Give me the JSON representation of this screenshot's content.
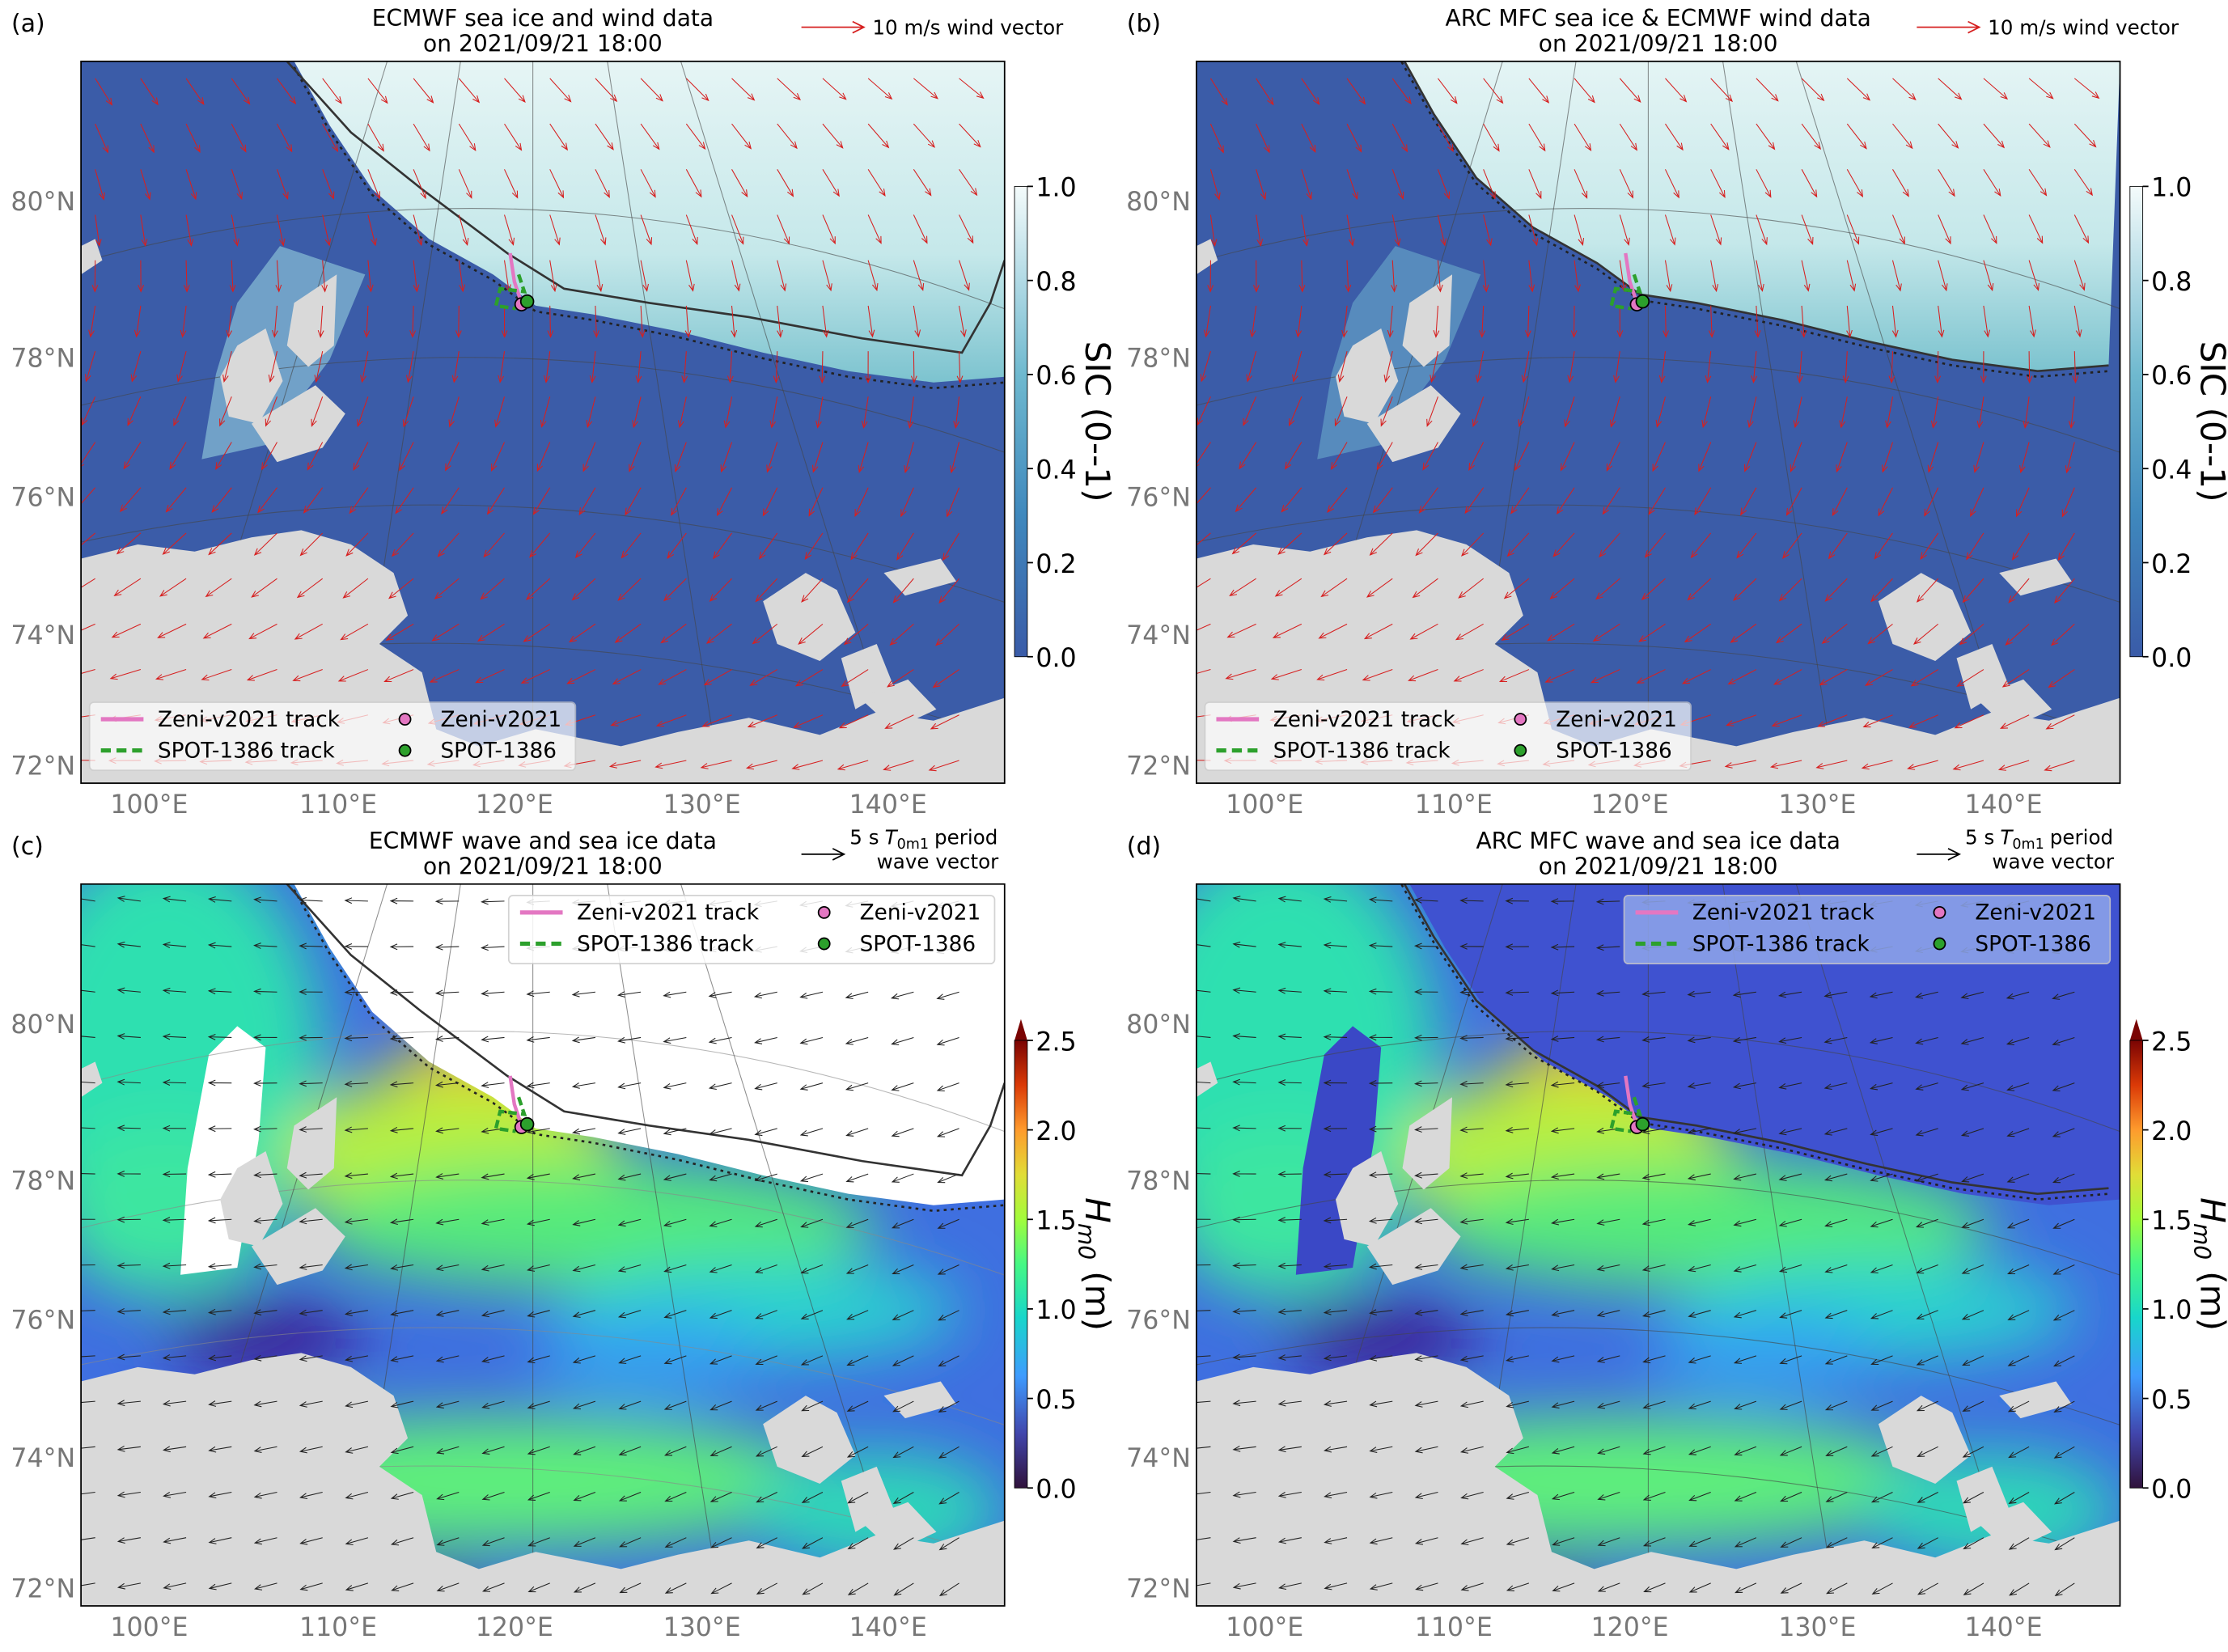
{
  "panels": [
    {
      "label": "(a)",
      "title": [
        "ECMWF sea ice and wind data",
        "on 2021/09/21 18:00"
      ],
      "key": {
        "text": "10 m/s wind vector"
      },
      "colorbar": {
        "label": "SIC (0--1)",
        "ticks": [
          "0.0",
          "0.2",
          "0.4",
          "0.6",
          "0.8",
          "1.0"
        ]
      }
    },
    {
      "label": "(b)",
      "title": [
        "ARC MFC sea ice & ECMWF wind data",
        "on 2021/09/21 18:00"
      ],
      "key": {
        "text": "10 m/s wind vector"
      },
      "colorbar": {
        "label": "SIC (0--1)",
        "ticks": [
          "0.0",
          "0.2",
          "0.4",
          "0.6",
          "0.8",
          "1.0"
        ]
      }
    },
    {
      "label": "(c)",
      "title": [
        "ECMWF wave and sea ice data",
        "on 2021/09/21 18:00"
      ],
      "key": {
        "text": "5 s",
        "symbol": "T",
        "subscript": "0m1",
        "suffix": "period",
        "line2": "wave vector"
      },
      "colorbar": {
        "symbol": "H",
        "subscript": "m0",
        "unit": "(m)",
        "ticks": [
          "0.0",
          "0.5",
          "1.0",
          "1.5",
          "2.0",
          "2.5"
        ]
      }
    },
    {
      "label": "(d)",
      "title": [
        "ARC MFC wave and sea ice data",
        "on 2021/09/21 18:00"
      ],
      "key": {
        "text": "5 s",
        "symbol": "T",
        "subscript": "0m1",
        "suffix": "period",
        "line2": "wave vector"
      },
      "colorbar": {
        "symbol": "H",
        "subscript": "m0",
        "unit": "(m)",
        "ticks": [
          "0.0",
          "0.5",
          "1.0",
          "1.5",
          "2.0",
          "2.5"
        ]
      }
    }
  ],
  "legend": [
    "Zeni-v2021 track",
    "SPOT-1386 track",
    "Zeni-v2021",
    "SPOT-1386"
  ],
  "lat_labels": [
    "80°N",
    "78°N",
    "76°N",
    "74°N",
    "72°N"
  ],
  "lon_labels": [
    "100°E",
    "110°E",
    "120°E",
    "130°E",
    "140°E"
  ]
}
